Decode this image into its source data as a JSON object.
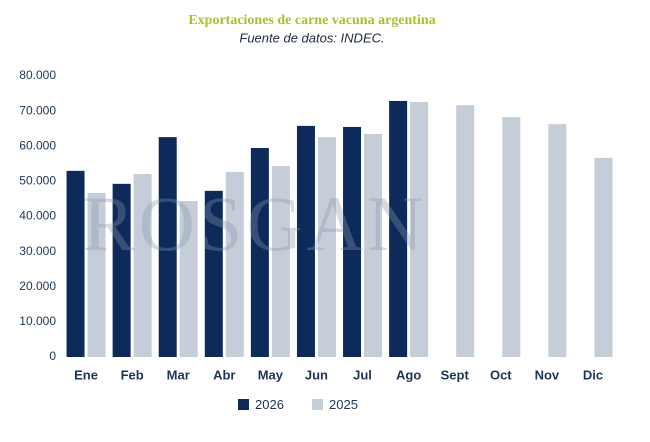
{
  "chart_data": {
    "type": "bar",
    "title": "Exportaciones de carne vacuna argentina",
    "subtitle": "Fuente de datos: INDEC.",
    "watermark": "ROSGAN",
    "categories": [
      "Ene",
      "Feb",
      "Mar",
      "Abr",
      "May",
      "Jun",
      "Jul",
      "Ago",
      "Sept",
      "Oct",
      "Nov",
      "Dic"
    ],
    "series": [
      {
        "name": "2026",
        "color": "#0d2b5a",
        "values": [
          53000,
          49300,
          62600,
          47300,
          59500,
          65800,
          65500,
          72900,
          null,
          null,
          null,
          null
        ]
      },
      {
        "name": "2025",
        "color": "#c5cdd9",
        "values": [
          46700,
          52100,
          44400,
          52700,
          54400,
          62600,
          63500,
          72600,
          71700,
          68300,
          66300,
          56700
        ]
      }
    ],
    "ylim": [
      0,
      80000
    ],
    "yticks": [
      0,
      {
        "value": 10000,
        "label": "10.000"
      },
      {
        "value": 20000,
        "label": "20.000"
      },
      {
        "value": 30000,
        "label": "30.000"
      },
      {
        "value": 40000,
        "label": "40.000"
      },
      {
        "value": 50000,
        "label": "50.000"
      },
      {
        "value": 60000,
        "label": "60.000"
      },
      {
        "value": 70000,
        "label": "70.000"
      },
      {
        "value": 80000,
        "label": "80.000"
      }
    ],
    "grid": false,
    "legend": "bottom"
  }
}
